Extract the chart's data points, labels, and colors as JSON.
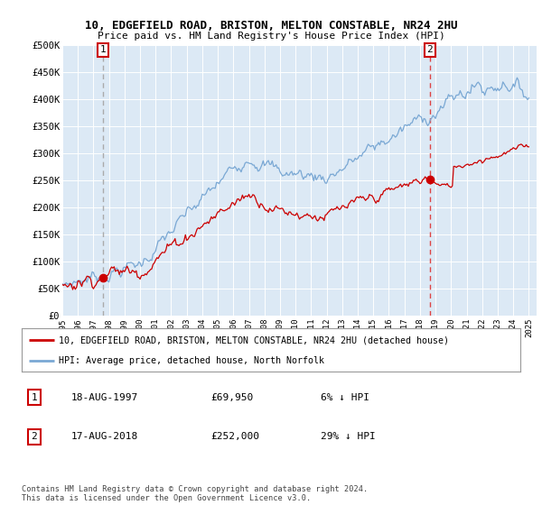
{
  "title1": "10, EDGEFIELD ROAD, BRISTON, MELTON CONSTABLE, NR24 2HU",
  "title2": "Price paid vs. HM Land Registry's House Price Index (HPI)",
  "background_color": "#dce9f5",
  "ylim": [
    0,
    500000
  ],
  "yticks": [
    0,
    50000,
    100000,
    150000,
    200000,
    250000,
    300000,
    350000,
    400000,
    450000,
    500000
  ],
  "ytick_labels": [
    "£0",
    "£50K",
    "£100K",
    "£150K",
    "£200K",
    "£250K",
    "£300K",
    "£350K",
    "£400K",
    "£450K",
    "£500K"
  ],
  "xmin": 1995.0,
  "xmax": 2025.5,
  "sale1_x": 1997.625,
  "sale1_y": 69950,
  "sale2_x": 2018.625,
  "sale2_y": 252000,
  "sale1_label": "1",
  "sale2_label": "2",
  "sale_color": "#cc0000",
  "vline1_color": "#aaaaaa",
  "vline2_color": "#dd4444",
  "hpi_color": "#7aa8d4",
  "grid_color": "#c8d8ea",
  "legend_label1": "10, EDGEFIELD ROAD, BRISTON, MELTON CONSTABLE, NR24 2HU (detached house)",
  "legend_label2": "HPI: Average price, detached house, North Norfolk",
  "table_row1": [
    "1",
    "18-AUG-1997",
    "£69,950",
    "6% ↓ HPI"
  ],
  "table_row2": [
    "2",
    "17-AUG-2018",
    "£252,000",
    "29% ↓ HPI"
  ],
  "footer": "Contains HM Land Registry data © Crown copyright and database right 2024.\nThis data is licensed under the Open Government Licence v3.0."
}
